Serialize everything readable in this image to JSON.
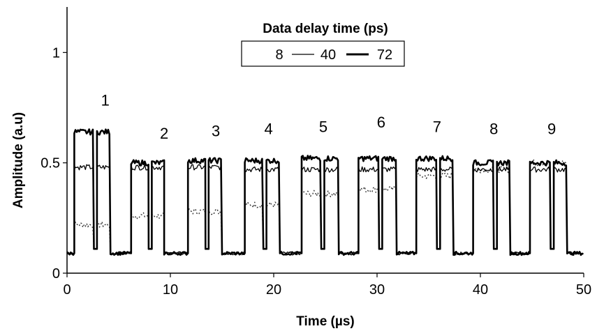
{
  "chart_data": {
    "type": "line",
    "title": "",
    "xlabel": "Time (µs)",
    "ylabel": "Amplitude (a.u)",
    "xlim": [
      0,
      50
    ],
    "ylim": [
      0,
      1.2
    ],
    "x_ticks": [
      "0",
      "10",
      "20",
      "30",
      "40",
      "50"
    ],
    "y_ticks": [
      "0",
      "0.5",
      "1"
    ],
    "grid": false,
    "legend": {
      "title": "Data delay time (ps)",
      "placement": "top-center",
      "entries": [
        "8",
        "40",
        "72"
      ]
    },
    "pulse_labels": [
      "1",
      "2",
      "3",
      "4",
      "5",
      "6",
      "7",
      "8",
      "9"
    ],
    "pulse_label_x": [
      3.7,
      9.4,
      14.4,
      19.5,
      24.8,
      30.4,
      35.8,
      41.3,
      46.9
    ],
    "pulse_label_y": [
      0.76,
      0.61,
      0.62,
      0.63,
      0.64,
      0.66,
      0.64,
      0.63,
      0.63
    ],
    "baseline": 0.09,
    "pulses": [
      {
        "on": 0.7,
        "off": 4.2,
        "gap": [
          2.6,
          2.9
        ]
      },
      {
        "on": 6.2,
        "off": 9.4,
        "gap": [
          7.9,
          8.2
        ]
      },
      {
        "on": 11.7,
        "off": 15.0,
        "gap": [
          13.4,
          13.7
        ]
      },
      {
        "on": 17.2,
        "off": 20.6,
        "gap": [
          19.0,
          19.3
        ]
      },
      {
        "on": 22.7,
        "off": 26.3,
        "gap": [
          24.6,
          24.9
        ]
      },
      {
        "on": 28.2,
        "off": 31.9,
        "gap": [
          30.2,
          30.5
        ]
      },
      {
        "on": 33.8,
        "off": 37.4,
        "gap": [
          35.8,
          36.1
        ]
      },
      {
        "on": 39.3,
        "off": 42.9,
        "gap": [
          41.3,
          41.6
        ]
      },
      {
        "on": 44.8,
        "off": 48.4,
        "gap": [
          46.8,
          47.1
        ]
      }
    ],
    "series": [
      {
        "name": "8",
        "style": "dotted",
        "color": "#333333",
        "values": [
          0.22,
          0.26,
          0.28,
          0.31,
          0.36,
          0.38,
          0.44,
          0.47,
          0.5
        ]
      },
      {
        "name": "40",
        "style": "thin",
        "color": "#000000",
        "values": [
          0.48,
          0.48,
          0.48,
          0.47,
          0.47,
          0.47,
          0.47,
          0.47,
          0.47
        ]
      },
      {
        "name": "72",
        "style": "thick",
        "color": "#000000",
        "values": [
          0.64,
          0.5,
          0.51,
          0.51,
          0.52,
          0.52,
          0.52,
          0.5,
          0.5
        ]
      }
    ]
  }
}
